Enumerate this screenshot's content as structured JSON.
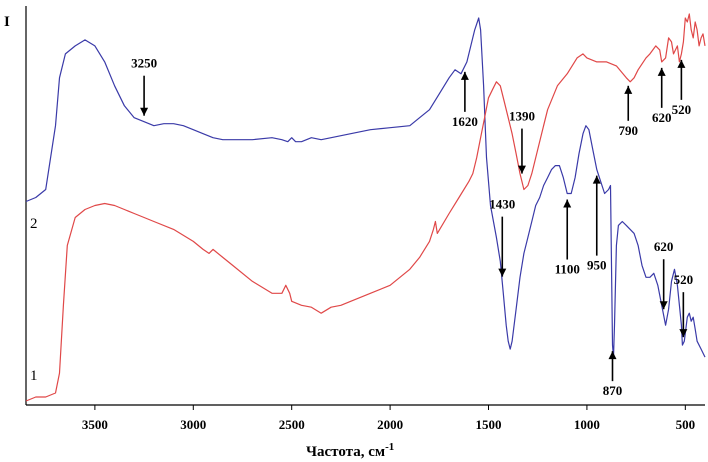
{
  "chart_data": {
    "type": "line",
    "title": "",
    "ylabel": "I",
    "xlabel_main": "Частота, см",
    "xlabel_sup": "-1",
    "xlim": [
      3850,
      400
    ],
    "ylim": [
      0,
      100
    ],
    "x_ticks": [
      {
        "value": 3500,
        "label": "3500"
      },
      {
        "value": 3000,
        "label": "3000"
      },
      {
        "value": 2500,
        "label": "2500"
      },
      {
        "value": 2000,
        "label": "2000"
      },
      {
        "value": 1500,
        "label": "1500"
      },
      {
        "value": 1000,
        "label": "1000"
      },
      {
        "value": 500,
        "label": "500"
      }
    ],
    "series": [
      {
        "name": "2",
        "color": "#3a3aa8",
        "points": [
          [
            3850,
            51
          ],
          [
            3800,
            52
          ],
          [
            3750,
            54
          ],
          [
            3700,
            70
          ],
          [
            3680,
            82
          ],
          [
            3650,
            88
          ],
          [
            3600,
            90
          ],
          [
            3550,
            91.5
          ],
          [
            3500,
            90
          ],
          [
            3450,
            86
          ],
          [
            3400,
            80
          ],
          [
            3350,
            75
          ],
          [
            3300,
            72
          ],
          [
            3250,
            71
          ],
          [
            3200,
            70
          ],
          [
            3150,
            70.5
          ],
          [
            3100,
            70.5
          ],
          [
            3050,
            70
          ],
          [
            3000,
            69
          ],
          [
            2950,
            68
          ],
          [
            2900,
            67
          ],
          [
            2850,
            66.5
          ],
          [
            2800,
            66.5
          ],
          [
            2700,
            66.5
          ],
          [
            2600,
            67
          ],
          [
            2550,
            66.5
          ],
          [
            2520,
            66
          ],
          [
            2500,
            67
          ],
          [
            2480,
            66
          ],
          [
            2450,
            66
          ],
          [
            2400,
            67
          ],
          [
            2350,
            66.5
          ],
          [
            2300,
            67
          ],
          [
            2200,
            68
          ],
          [
            2100,
            69
          ],
          [
            2000,
            69.5
          ],
          [
            1900,
            70
          ],
          [
            1850,
            72
          ],
          [
            1800,
            74
          ],
          [
            1750,
            78
          ],
          [
            1700,
            82
          ],
          [
            1670,
            84
          ],
          [
            1640,
            83
          ],
          [
            1610,
            86
          ],
          [
            1590,
            90
          ],
          [
            1570,
            94
          ],
          [
            1550,
            97
          ],
          [
            1540,
            94
          ],
          [
            1525,
            80
          ],
          [
            1510,
            62
          ],
          [
            1490,
            50
          ],
          [
            1460,
            42
          ],
          [
            1440,
            36
          ],
          [
            1425,
            28
          ],
          [
            1410,
            20
          ],
          [
            1400,
            16
          ],
          [
            1390,
            14
          ],
          [
            1380,
            16
          ],
          [
            1360,
            24
          ],
          [
            1340,
            32
          ],
          [
            1320,
            38
          ],
          [
            1300,
            42
          ],
          [
            1280,
            46
          ],
          [
            1260,
            50
          ],
          [
            1240,
            52
          ],
          [
            1220,
            55
          ],
          [
            1200,
            57
          ],
          [
            1180,
            59
          ],
          [
            1160,
            60
          ],
          [
            1140,
            60
          ],
          [
            1120,
            57
          ],
          [
            1100,
            53
          ],
          [
            1080,
            53
          ],
          [
            1060,
            57
          ],
          [
            1040,
            63
          ],
          [
            1020,
            68
          ],
          [
            1005,
            70
          ],
          [
            990,
            69
          ],
          [
            970,
            64
          ],
          [
            950,
            59
          ],
          [
            930,
            56
          ],
          [
            910,
            53
          ],
          [
            890,
            54
          ],
          [
            880,
            55
          ],
          [
            870,
            15
          ],
          [
            865,
            12
          ],
          [
            860,
            20
          ],
          [
            850,
            40
          ],
          [
            840,
            45
          ],
          [
            820,
            46
          ],
          [
            800,
            45
          ],
          [
            780,
            44
          ],
          [
            760,
            43
          ],
          [
            740,
            40
          ],
          [
            720,
            35
          ],
          [
            700,
            32
          ],
          [
            680,
            32
          ],
          [
            660,
            33
          ],
          [
            640,
            30
          ],
          [
            620,
            25
          ],
          [
            600,
            20
          ],
          [
            585,
            24
          ],
          [
            570,
            31
          ],
          [
            555,
            34
          ],
          [
            540,
            30
          ],
          [
            520,
            20
          ],
          [
            515,
            15
          ],
          [
            505,
            16
          ],
          [
            490,
            22
          ],
          [
            480,
            23
          ],
          [
            470,
            21
          ],
          [
            460,
            22
          ],
          [
            450,
            19
          ],
          [
            440,
            16
          ],
          [
            420,
            14
          ],
          [
            400,
            12
          ]
        ]
      },
      {
        "name": "1",
        "color": "#e04848",
        "points": [
          [
            3850,
            1
          ],
          [
            3800,
            2
          ],
          [
            3750,
            2
          ],
          [
            3700,
            3
          ],
          [
            3680,
            8
          ],
          [
            3660,
            25
          ],
          [
            3640,
            40
          ],
          [
            3600,
            47
          ],
          [
            3550,
            49
          ],
          [
            3500,
            50
          ],
          [
            3450,
            50.5
          ],
          [
            3400,
            50
          ],
          [
            3350,
            49
          ],
          [
            3300,
            48
          ],
          [
            3250,
            47
          ],
          [
            3200,
            46
          ],
          [
            3100,
            44
          ],
          [
            3000,
            41
          ],
          [
            2950,
            39
          ],
          [
            2920,
            38
          ],
          [
            2900,
            39
          ],
          [
            2850,
            37
          ],
          [
            2800,
            35
          ],
          [
            2700,
            31
          ],
          [
            2600,
            28
          ],
          [
            2550,
            28
          ],
          [
            2530,
            30
          ],
          [
            2510,
            28
          ],
          [
            2500,
            26
          ],
          [
            2450,
            25
          ],
          [
            2400,
            24.5
          ],
          [
            2350,
            23
          ],
          [
            2300,
            24.5
          ],
          [
            2250,
            25
          ],
          [
            2200,
            26
          ],
          [
            2100,
            28
          ],
          [
            2000,
            30
          ],
          [
            1900,
            34
          ],
          [
            1850,
            37
          ],
          [
            1800,
            41
          ],
          [
            1780,
            44
          ],
          [
            1770,
            46
          ],
          [
            1760,
            43
          ],
          [
            1700,
            48
          ],
          [
            1650,
            52
          ],
          [
            1600,
            56
          ],
          [
            1580,
            58
          ],
          [
            1560,
            62
          ],
          [
            1540,
            67
          ],
          [
            1520,
            72
          ],
          [
            1500,
            77
          ],
          [
            1480,
            79
          ],
          [
            1460,
            81
          ],
          [
            1440,
            80
          ],
          [
            1420,
            76
          ],
          [
            1400,
            72
          ],
          [
            1380,
            68
          ],
          [
            1360,
            63
          ],
          [
            1340,
            58
          ],
          [
            1320,
            54
          ],
          [
            1300,
            55
          ],
          [
            1280,
            58
          ],
          [
            1250,
            64
          ],
          [
            1220,
            70
          ],
          [
            1200,
            74
          ],
          [
            1150,
            80
          ],
          [
            1100,
            83
          ],
          [
            1050,
            87
          ],
          [
            1020,
            88
          ],
          [
            1000,
            87
          ],
          [
            950,
            86
          ],
          [
            900,
            86
          ],
          [
            850,
            85
          ],
          [
            800,
            82
          ],
          [
            780,
            81
          ],
          [
            760,
            82
          ],
          [
            740,
            84
          ],
          [
            700,
            87
          ],
          [
            680,
            88
          ],
          [
            650,
            90
          ],
          [
            630,
            89
          ],
          [
            620,
            86
          ],
          [
            600,
            87
          ],
          [
            585,
            92
          ],
          [
            570,
            91
          ],
          [
            560,
            88
          ],
          [
            540,
            90
          ],
          [
            530,
            86
          ],
          [
            520,
            88
          ],
          [
            510,
            91
          ],
          [
            500,
            97
          ],
          [
            490,
            96
          ],
          [
            480,
            98
          ],
          [
            470,
            94
          ],
          [
            460,
            92
          ],
          [
            450,
            96
          ],
          [
            440,
            94
          ],
          [
            430,
            90
          ],
          [
            420,
            92
          ],
          [
            410,
            93
          ],
          [
            400,
            90
          ]
        ]
      }
    ],
    "annotations": [
      {
        "text": "3250",
        "x": 3250,
        "dir": "down"
      },
      {
        "text": "1620",
        "x": 1620,
        "dir": "up"
      },
      {
        "text": "1390",
        "x": 1330,
        "dir": "down"
      },
      {
        "text": "790",
        "x": 790,
        "dir": "up"
      },
      {
        "text": "620",
        "x": 620,
        "dir": "up"
      },
      {
        "text": "520",
        "x": 520,
        "dir": "up"
      },
      {
        "text": "1430",
        "x": 1430,
        "dir": "down"
      },
      {
        "text": "1100",
        "x": 1100,
        "dir": "up"
      },
      {
        "text": "950",
        "x": 950,
        "dir": "up"
      },
      {
        "text": "870",
        "x": 870,
        "dir": "up"
      },
      {
        "text": "620",
        "x": 610,
        "dir": "down"
      },
      {
        "text": "520",
        "x": 510,
        "dir": "down"
      }
    ]
  }
}
